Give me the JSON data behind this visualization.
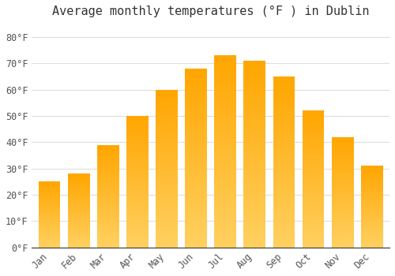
{
  "title": "Average monthly temperatures (°F ) in Dublin",
  "months": [
    "Jan",
    "Feb",
    "Mar",
    "Apr",
    "May",
    "Jun",
    "Jul",
    "Aug",
    "Sep",
    "Oct",
    "Nov",
    "Dec"
  ],
  "values": [
    25,
    28,
    39,
    50,
    60,
    68,
    73,
    71,
    65,
    52,
    42,
    31
  ],
  "bar_color_top": "#FFA500",
  "bar_color_bottom": "#FFD060",
  "background_color": "#FFFFFF",
  "grid_color": "#DDDDDD",
  "yticks": [
    0,
    10,
    20,
    30,
    40,
    50,
    60,
    70,
    80
  ],
  "ytick_labels": [
    "0°F",
    "10°F",
    "20°F",
    "30°F",
    "40°F",
    "50°F",
    "60°F",
    "70°F",
    "80°F"
  ],
  "ylim": [
    0,
    85
  ],
  "xlim": [
    -0.6,
    11.6
  ],
  "title_fontsize": 11,
  "tick_fontsize": 8.5,
  "font_family": "monospace",
  "bar_width": 0.75,
  "n_segments": 80
}
